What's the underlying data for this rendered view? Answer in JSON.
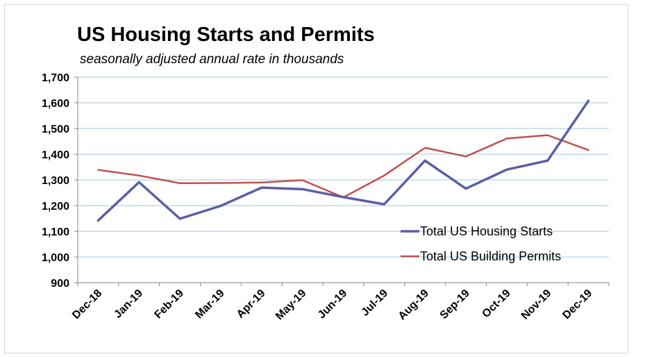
{
  "chart_data": {
    "type": "line",
    "title": "US Housing Starts and Permits",
    "subtitle": "seasonally adjusted annual rate in thousands",
    "xlabel": "",
    "ylabel": "",
    "categories": [
      "Dec-18",
      "Jan-19",
      "Feb-19",
      "Mar-19",
      "Apr-19",
      "May-19",
      "Jun-19",
      "Jul-19",
      "Aug-19",
      "Sep-19",
      "Oct-19",
      "Nov-19",
      "Dec-19"
    ],
    "ylim": [
      900,
      1700
    ],
    "yticks": [
      900,
      1000,
      1100,
      1200,
      1300,
      1400,
      1500,
      1600,
      1700
    ],
    "ytick_labels": [
      "900",
      "1,000",
      "1,100",
      "1,200",
      "1,300",
      "1,400",
      "1,500",
      "1,600",
      "1,700"
    ],
    "grid": true,
    "legend_position": "bottom-right",
    "series": [
      {
        "name": "Total US Housing Starts",
        "color": "#5b5ea6",
        "values": [
          1142,
          1291,
          1149,
          1199,
          1270,
          1264,
          1233,
          1205,
          1375,
          1266,
          1340,
          1375,
          1608
        ]
      },
      {
        "name": "Total US Building Permits",
        "color": "#c0504d",
        "values": [
          1339,
          1317,
          1287,
          1288,
          1290,
          1299,
          1232,
          1317,
          1425,
          1391,
          1461,
          1474,
          1416
        ]
      }
    ]
  }
}
